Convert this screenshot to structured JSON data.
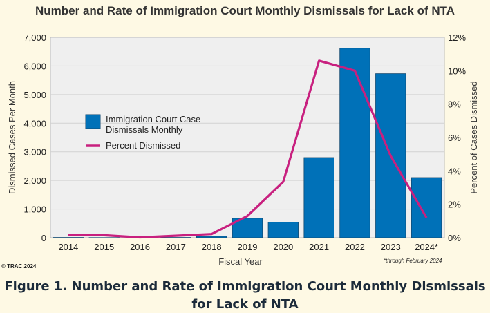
{
  "title": "Number and Rate of Immigration Court Monthly Dismissals for Lack of NTA",
  "credit": "© TRAC 2024",
  "note": "*through February 2024",
  "caption": "Figure 1. Number and Rate of Immigration Court Monthly Dismissals for Lack of NTA",
  "chart_data": {
    "type": "bar",
    "title": "Number and Rate of Immigration Court Monthly Dismissals for Lack of NTA",
    "xlabel": "Fiscal Year",
    "ylabel": "Dismissed Cases Per Month",
    "y2label": "Percent of Cases Dismissed",
    "categories": [
      "2014",
      "2015",
      "2016",
      "2017",
      "2018",
      "2019",
      "2020",
      "2021",
      "2022",
      "2023",
      "2024*"
    ],
    "ylim": [
      0,
      7000
    ],
    "y2lim": [
      0,
      12
    ],
    "yticks": [
      "0",
      "1,000",
      "2,000",
      "3,000",
      "4,000",
      "5,000",
      "6,000",
      "7,000"
    ],
    "y2ticks": [
      "0%",
      "2%",
      "4%",
      "6%",
      "8%",
      "10%",
      "12%"
    ],
    "legend_position": "center-left",
    "series": [
      {
        "name": "Immigration Court Case Dismissals Monthly",
        "type": "bar",
        "axis": "left",
        "color": "#0071b8",
        "values": [
          10,
          5,
          0,
          10,
          50,
          680,
          540,
          2800,
          6620,
          5730,
          2100
        ]
      },
      {
        "name": "Percent Dismissed",
        "type": "line",
        "axis": "right",
        "color": "#c8207f",
        "values": [
          0.15,
          0.15,
          0.02,
          0.12,
          0.22,
          1.3,
          3.35,
          10.6,
          10.0,
          4.9,
          1.2
        ]
      }
    ]
  }
}
